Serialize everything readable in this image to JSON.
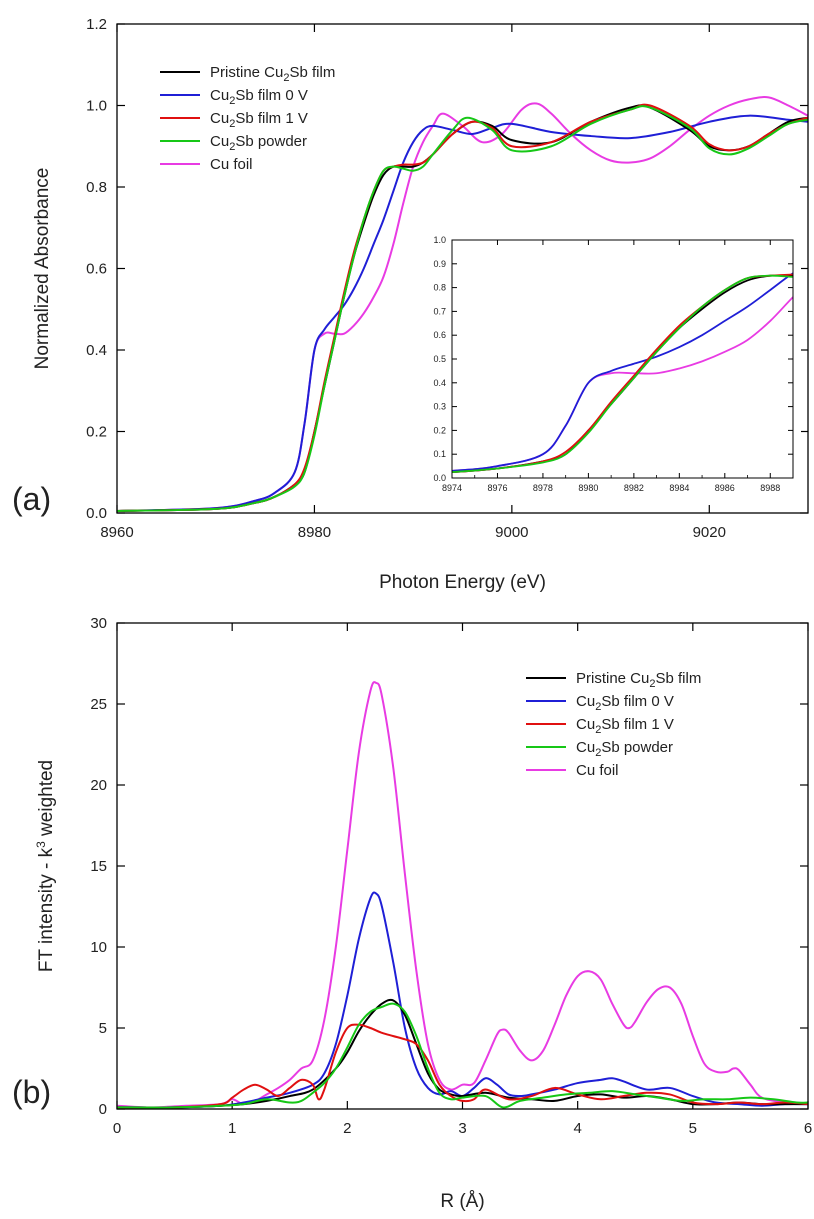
{
  "chart_data": [
    {
      "id": "a",
      "panel_label": "(a)",
      "type": "line",
      "xlabel": "Photon Energy (eV)",
      "ylabel": "Normalized Absorbance",
      "xlim": [
        8960,
        9030
      ],
      "ylim": [
        0,
        1.2
      ],
      "xticks": [
        8960,
        8980,
        9000,
        9020
      ],
      "yticks": [
        0.0,
        0.2,
        0.4,
        0.6,
        0.8,
        1.0,
        1.2
      ],
      "xtick_labels": [
        "8960",
        "8980",
        "9000",
        "9020"
      ],
      "ytick_labels": [
        "0.0",
        "0.2",
        "0.4",
        "0.6",
        "0.8",
        "1.0",
        "1.2"
      ],
      "legend_position": "top-left",
      "series": [
        {
          "name": "Pristine Cu2Sb film",
          "label_main": "Pristine Cu",
          "label_sub": "2",
          "label_tail": "Sb film",
          "color": "#000000",
          "x": [
            8960,
            8970,
            8974,
            8976,
            8978,
            8979,
            8980,
            8981,
            8982,
            8983,
            8984,
            8985,
            8986,
            8987,
            8988,
            8989,
            8990,
            8991,
            8992,
            8994,
            8996,
            8998,
            9000,
            9004,
            9008,
            9012,
            9014,
            9018,
            9020,
            9022,
            9024,
            9026,
            9028,
            9030
          ],
          "y": [
            0.005,
            0.01,
            0.025,
            0.04,
            0.07,
            0.1,
            0.2,
            0.31,
            0.42,
            0.53,
            0.63,
            0.71,
            0.78,
            0.83,
            0.85,
            0.85,
            0.85,
            0.86,
            0.88,
            0.93,
            0.96,
            0.95,
            0.915,
            0.91,
            0.96,
            0.995,
            0.995,
            0.94,
            0.9,
            0.89,
            0.9,
            0.93,
            0.96,
            0.97
          ]
        },
        {
          "name": "Cu2Sb film 0 V",
          "label_main": "Cu",
          "label_sub": "2",
          "label_tail": "Sb film 0 V",
          "color": "#1f1fd6",
          "x": [
            8960,
            8970,
            8974,
            8976,
            8978,
            8979,
            8980,
            8981,
            8982,
            8983,
            8984,
            8985,
            8986,
            8987,
            8988,
            8989,
            8990,
            8991,
            8992,
            8994,
            8996,
            8998,
            9000,
            9004,
            9008,
            9012,
            9016,
            9020,
            9024,
            9028,
            9030
          ],
          "y": [
            0.005,
            0.012,
            0.03,
            0.05,
            0.1,
            0.22,
            0.4,
            0.45,
            0.48,
            0.51,
            0.55,
            0.6,
            0.66,
            0.72,
            0.79,
            0.86,
            0.91,
            0.94,
            0.95,
            0.94,
            0.93,
            0.945,
            0.955,
            0.935,
            0.925,
            0.92,
            0.935,
            0.96,
            0.975,
            0.965,
            0.96
          ]
        },
        {
          "name": "Cu2Sb film 1 V",
          "label_main": "Cu",
          "label_sub": "2",
          "label_tail": "Sb film 1 V",
          "color": "#e01010",
          "x": [
            8960,
            8970,
            8974,
            8976,
            8978,
            8979,
            8980,
            8981,
            8982,
            8983,
            8984,
            8985,
            8986,
            8987,
            8988,
            8989,
            8990,
            8991,
            8992,
            8994,
            8996,
            8998,
            9000,
            9004,
            9008,
            9012,
            9014,
            9018,
            9020,
            9022,
            9024,
            9026,
            9028,
            9030
          ],
          "y": [
            0.005,
            0.01,
            0.025,
            0.04,
            0.07,
            0.11,
            0.2,
            0.32,
            0.43,
            0.54,
            0.64,
            0.72,
            0.79,
            0.84,
            0.85,
            0.855,
            0.855,
            0.86,
            0.88,
            0.93,
            0.96,
            0.945,
            0.9,
            0.91,
            0.96,
            0.99,
            1.0,
            0.95,
            0.905,
            0.89,
            0.9,
            0.93,
            0.955,
            0.97
          ]
        },
        {
          "name": "Cu2Sb powder",
          "label_main": "Cu",
          "label_sub": "2",
          "label_tail": "Sb powder",
          "color": "#16c716",
          "x": [
            8960,
            8970,
            8974,
            8976,
            8978,
            8979,
            8980,
            8981,
            8982,
            8983,
            8984,
            8985,
            8986,
            8987,
            8988,
            8989,
            8990,
            8991,
            8992,
            8994,
            8995.5,
            8998,
            9000,
            9004,
            9008,
            9012,
            9014,
            9018,
            9020,
            9022,
            9024,
            9026,
            9028,
            9030
          ],
          "y": [
            0.005,
            0.01,
            0.025,
            0.04,
            0.065,
            0.1,
            0.19,
            0.31,
            0.42,
            0.53,
            0.63,
            0.72,
            0.79,
            0.84,
            0.85,
            0.845,
            0.84,
            0.85,
            0.88,
            0.94,
            0.97,
            0.94,
            0.89,
            0.9,
            0.955,
            0.99,
            0.995,
            0.945,
            0.895,
            0.88,
            0.895,
            0.925,
            0.955,
            0.965
          ]
        },
        {
          "name": "Cu foil",
          "label_main": "Cu foil",
          "label_sub": "",
          "label_tail": "",
          "color": "#e83be3",
          "x": [
            8960,
            8970,
            8974,
            8976,
            8978,
            8979,
            8980,
            8981,
            8982,
            8983,
            8984,
            8985,
            8986,
            8987,
            8988,
            8989,
            8990,
            8991,
            8992,
            8993,
            8995,
            8997,
            8999,
            9001,
            9002.5,
            9004,
            9006,
            9008,
            9010,
            9012,
            9014,
            9016,
            9018,
            9020,
            9022,
            9024,
            9026,
            9028,
            9030
          ],
          "y": [
            0.005,
            0.012,
            0.03,
            0.05,
            0.1,
            0.22,
            0.4,
            0.44,
            0.44,
            0.44,
            0.46,
            0.49,
            0.53,
            0.58,
            0.66,
            0.76,
            0.85,
            0.91,
            0.95,
            0.98,
            0.95,
            0.91,
            0.93,
            0.99,
            1.005,
            0.98,
            0.93,
            0.89,
            0.865,
            0.86,
            0.87,
            0.9,
            0.94,
            0.975,
            1.0,
            1.015,
            1.02,
            1.0,
            0.975
          ]
        }
      ],
      "inset": {
        "xlim": [
          8974,
          8989
        ],
        "ylim": [
          0,
          1.0
        ],
        "xticks": [
          8974,
          8976,
          8978,
          8980,
          8982,
          8984,
          8986,
          8988
        ],
        "yticks": [
          0.0,
          0.1,
          0.2,
          0.3,
          0.4,
          0.5,
          0.6,
          0.7,
          0.8,
          0.9,
          1.0
        ],
        "xtick_labels": [
          "8974",
          "8976",
          "8978",
          "8980",
          "8982",
          "8984",
          "8986",
          "8988"
        ],
        "ytick_labels": [
          "0.0",
          "0.1",
          "0.2",
          "0.3",
          "0.4",
          "0.5",
          "0.6",
          "0.7",
          "0.8",
          "0.9",
          "1.0"
        ]
      }
    },
    {
      "id": "b",
      "panel_label": "(b)",
      "type": "line",
      "xlabel": "R (Å)",
      "ylabel_main": "FT intensity - k",
      "ylabel_sup": "3",
      "ylabel_tail": " weighted",
      "xlim": [
        0,
        6
      ],
      "ylim": [
        0,
        30
      ],
      "xticks": [
        0,
        1,
        2,
        3,
        4,
        5,
        6
      ],
      "yticks": [
        0,
        5,
        10,
        15,
        20,
        25,
        30
      ],
      "xtick_labels": [
        "0",
        "1",
        "2",
        "3",
        "4",
        "5",
        "6"
      ],
      "ytick_labels": [
        "0",
        "5",
        "10",
        "15",
        "20",
        "25",
        "30"
      ],
      "legend_position": "top-right",
      "series": [
        {
          "name": "Pristine Cu2Sb film",
          "label_main": "Pristine Cu",
          "label_sub": "2",
          "label_tail": "Sb film",
          "color": "#000000",
          "x": [
            0,
            0.5,
            0.9,
            1.1,
            1.3,
            1.5,
            1.7,
            1.9,
            2.0,
            2.1,
            2.2,
            2.3,
            2.4,
            2.5,
            2.6,
            2.7,
            2.8,
            2.9,
            3.0,
            3.2,
            3.4,
            3.6,
            3.8,
            4.0,
            4.2,
            4.4,
            4.6,
            4.8,
            5.0,
            5.2,
            5.4,
            5.6,
            5.8,
            6.0
          ],
          "y": [
            0.1,
            0.1,
            0.2,
            0.3,
            0.5,
            0.8,
            1.2,
            2.5,
            3.5,
            4.8,
            5.8,
            6.5,
            6.7,
            5.8,
            4.0,
            2.2,
            1.2,
            0.9,
            0.8,
            1.0,
            0.7,
            0.6,
            0.5,
            0.8,
            0.9,
            0.7,
            0.8,
            0.6,
            0.3,
            0.3,
            0.4,
            0.3,
            0.3,
            0.3
          ]
        },
        {
          "name": "Cu2Sb film 0 V",
          "label_main": "Cu",
          "label_sub": "2",
          "label_tail": "Sb film 0 V",
          "color": "#1f1fd6",
          "x": [
            0,
            0.5,
            0.9,
            1.1,
            1.3,
            1.5,
            1.7,
            1.8,
            1.9,
            2.0,
            2.1,
            2.2,
            2.25,
            2.3,
            2.4,
            2.5,
            2.6,
            2.7,
            2.8,
            2.9,
            3.0,
            3.1,
            3.2,
            3.3,
            3.4,
            3.5,
            3.6,
            3.8,
            4.0,
            4.2,
            4.3,
            4.4,
            4.6,
            4.8,
            5.0,
            5.2,
            5.4,
            5.6,
            5.8,
            6.0
          ],
          "y": [
            0.1,
            0.1,
            0.2,
            0.4,
            0.7,
            1.0,
            1.5,
            2.2,
            4.0,
            7.0,
            10.5,
            13.0,
            13.3,
            12.5,
            9.0,
            5.0,
            2.5,
            1.3,
            0.9,
            1.1,
            0.8,
            1.3,
            1.9,
            1.5,
            0.9,
            0.8,
            0.9,
            1.2,
            1.6,
            1.8,
            1.9,
            1.7,
            1.2,
            1.3,
            0.8,
            0.4,
            0.3,
            0.2,
            0.3,
            0.3
          ]
        },
        {
          "name": "Cu2Sb film 1 V",
          "label_main": "Cu",
          "label_sub": "2",
          "label_tail": "Sb film 1 V",
          "color": "#e01010",
          "x": [
            0,
            0.5,
            0.9,
            1.0,
            1.1,
            1.2,
            1.3,
            1.4,
            1.5,
            1.6,
            1.7,
            1.75,
            1.8,
            1.9,
            2.0,
            2.1,
            2.2,
            2.3,
            2.4,
            2.5,
            2.6,
            2.7,
            2.8,
            2.9,
            3.0,
            3.1,
            3.2,
            3.4,
            3.6,
            3.8,
            4.0,
            4.2,
            4.4,
            4.6,
            4.8,
            5.0,
            5.2,
            5.4,
            5.6,
            5.8,
            6.0
          ],
          "y": [
            0.1,
            0.1,
            0.3,
            0.7,
            1.2,
            1.5,
            1.2,
            0.8,
            1.3,
            1.8,
            1.5,
            0.6,
            1.2,
            3.5,
            5.0,
            5.2,
            5.0,
            4.7,
            4.5,
            4.3,
            4.0,
            3.0,
            1.5,
            0.8,
            0.5,
            0.6,
            1.2,
            0.6,
            0.8,
            1.3,
            0.9,
            0.6,
            0.8,
            1.0,
            0.9,
            0.4,
            0.3,
            0.4,
            0.3,
            0.4,
            0.3
          ]
        },
        {
          "name": "Cu2Sb powder",
          "label_main": "Cu",
          "label_sub": "2",
          "label_tail": "Sb powder",
          "color": "#16c716",
          "x": [
            0,
            0.5,
            0.9,
            1.1,
            1.3,
            1.5,
            1.6,
            1.7,
            1.8,
            1.9,
            2.0,
            2.1,
            2.2,
            2.3,
            2.4,
            2.5,
            2.6,
            2.7,
            2.8,
            2.9,
            3.0,
            3.2,
            3.35,
            3.5,
            3.7,
            3.9,
            4.1,
            4.3,
            4.5,
            4.7,
            4.9,
            5.1,
            5.3,
            5.5,
            5.7,
            5.9,
            6.0
          ],
          "y": [
            0.1,
            0.1,
            0.2,
            0.3,
            0.6,
            0.4,
            0.5,
            1.0,
            1.6,
            2.5,
            3.8,
            5.2,
            6.0,
            6.3,
            6.5,
            6.0,
            4.5,
            2.5,
            1.0,
            0.6,
            0.7,
            0.8,
            0.1,
            0.5,
            0.7,
            0.9,
            1.0,
            1.1,
            0.9,
            0.7,
            0.5,
            0.6,
            0.6,
            0.7,
            0.6,
            0.4,
            0.4
          ]
        },
        {
          "name": "Cu foil",
          "label_main": "Cu foil",
          "label_sub": "",
          "label_tail": "",
          "color": "#e83be3",
          "x": [
            0,
            0.3,
            0.6,
            0.9,
            1.0,
            1.1,
            1.2,
            1.3,
            1.4,
            1.5,
            1.6,
            1.7,
            1.8,
            1.9,
            2.0,
            2.1,
            2.2,
            2.25,
            2.3,
            2.4,
            2.5,
            2.6,
            2.7,
            2.8,
            2.9,
            3.0,
            3.1,
            3.2,
            3.3,
            3.35,
            3.4,
            3.5,
            3.6,
            3.7,
            3.8,
            3.9,
            4.0,
            4.1,
            4.2,
            4.3,
            4.4,
            4.45,
            4.5,
            4.6,
            4.7,
            4.8,
            4.9,
            5.0,
            5.1,
            5.2,
            5.3,
            5.35,
            5.4,
            5.5,
            5.6,
            5.8,
            6.0
          ],
          "y": [
            0.2,
            0.1,
            0.2,
            0.3,
            0.6,
            0.3,
            0.5,
            0.9,
            1.3,
            1.8,
            2.5,
            3.0,
            5.5,
            10.0,
            16.0,
            22.0,
            25.8,
            26.3,
            25.5,
            21.0,
            14.5,
            8.5,
            4.0,
            1.8,
            1.2,
            1.5,
            1.6,
            3.0,
            4.6,
            4.9,
            4.7,
            3.6,
            3.0,
            3.6,
            5.2,
            7.0,
            8.2,
            8.5,
            8.0,
            6.5,
            5.2,
            5.0,
            5.4,
            6.6,
            7.4,
            7.5,
            6.5,
            4.5,
            2.8,
            2.3,
            2.3,
            2.5,
            2.4,
            1.5,
            0.7,
            0.4,
            0.3
          ]
        }
      ]
    }
  ]
}
